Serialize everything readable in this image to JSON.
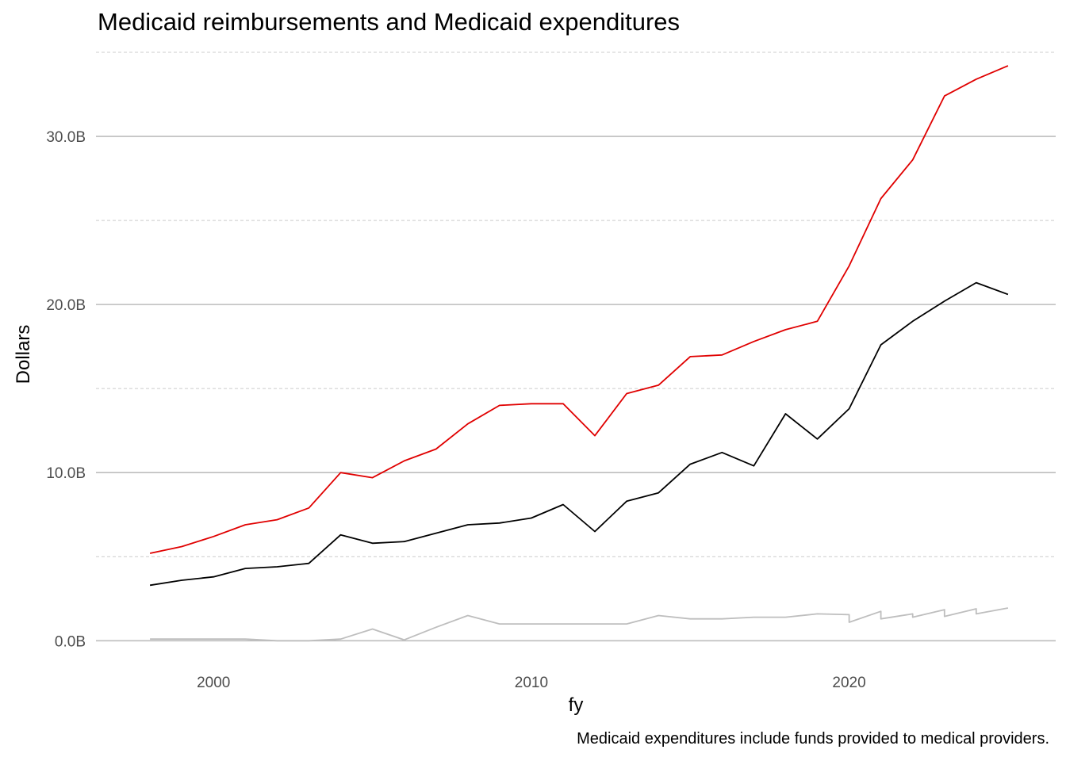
{
  "chart_data": {
    "type": "line",
    "title": "Medicaid reimbursements and Medicaid expenditures",
    "xlabel": "fy",
    "ylabel": "Dollars",
    "caption": "Medicaid expenditures include funds provided to medical providers.",
    "xlim": [
      1996.3,
      2026.5
    ],
    "ylim": [
      -1.4,
      35.0
    ],
    "x_ticks": [
      {
        "value": 2000,
        "label": "2000"
      },
      {
        "value": 2010,
        "label": "2010"
      },
      {
        "value": 2020,
        "label": "2020"
      }
    ],
    "y_ticks": [
      {
        "value": 0,
        "label": "0.0B"
      },
      {
        "value": 10,
        "label": "10.0B"
      },
      {
        "value": 20,
        "label": "20.0B"
      },
      {
        "value": 30,
        "label": "30.0B"
      }
    ],
    "y_minor_gridlines": [
      5,
      15,
      25,
      35
    ],
    "grid": true,
    "legend": "none",
    "series": [
      {
        "color": "#e00000",
        "points": [
          [
            1998,
            5.2
          ],
          [
            1999,
            5.6
          ],
          [
            2000,
            6.2
          ],
          [
            2001,
            6.9
          ],
          [
            2002,
            7.2
          ],
          [
            2003,
            7.9
          ],
          [
            2004,
            10.0
          ],
          [
            2005,
            9.7
          ],
          [
            2006,
            10.7
          ],
          [
            2007,
            11.4
          ],
          [
            2008,
            12.9
          ],
          [
            2009,
            14.0
          ],
          [
            2010,
            14.1
          ],
          [
            2011,
            14.1
          ],
          [
            2012,
            12.2
          ],
          [
            2013,
            14.7
          ],
          [
            2014,
            15.2
          ],
          [
            2015,
            16.9
          ],
          [
            2016,
            17.0
          ],
          [
            2017,
            17.8
          ],
          [
            2018,
            18.5
          ],
          [
            2019,
            19.0
          ],
          [
            2020,
            22.3
          ],
          [
            2021,
            26.3
          ],
          [
            2022,
            28.6
          ],
          [
            2023,
            32.4
          ],
          [
            2024,
            33.4
          ],
          [
            2025,
            34.2
          ]
        ]
      },
      {
        "color": "#000000",
        "points": [
          [
            1998,
            3.3
          ],
          [
            1999,
            3.6
          ],
          [
            2000,
            3.8
          ],
          [
            2001,
            4.3
          ],
          [
            2002,
            4.4
          ],
          [
            2003,
            4.6
          ],
          [
            2004,
            6.3
          ],
          [
            2005,
            5.8
          ],
          [
            2006,
            5.9
          ],
          [
            2007,
            6.4
          ],
          [
            2008,
            6.9
          ],
          [
            2009,
            7.0
          ],
          [
            2010,
            7.3
          ],
          [
            2011,
            8.1
          ],
          [
            2012,
            6.5
          ],
          [
            2013,
            8.3
          ],
          [
            2014,
            8.8
          ],
          [
            2015,
            10.5
          ],
          [
            2016,
            11.2
          ],
          [
            2017,
            10.4
          ],
          [
            2018,
            13.5
          ],
          [
            2019,
            12.0
          ],
          [
            2020,
            13.8
          ],
          [
            2021,
            17.6
          ],
          [
            2022,
            19.0
          ],
          [
            2023,
            20.2
          ],
          [
            2024,
            21.3
          ],
          [
            2025,
            20.6
          ]
        ]
      },
      {
        "color": "#bebebe",
        "points": [
          [
            1998,
            0.1
          ],
          [
            1999,
            0.1
          ],
          [
            2000,
            0.1
          ],
          [
            2001,
            0.1
          ],
          [
            2002,
            0.0
          ],
          [
            2003,
            0.0
          ],
          [
            2004,
            0.1
          ],
          [
            2005,
            0.7
          ],
          [
            2006,
            0.05
          ],
          [
            2007,
            0.8
          ],
          [
            2008,
            1.5
          ],
          [
            2009,
            1.0
          ],
          [
            2010,
            1.0
          ],
          [
            2011,
            1.0
          ],
          [
            2012,
            1.0
          ],
          [
            2013,
            1.0
          ],
          [
            2014,
            1.5
          ],
          [
            2015,
            1.3
          ],
          [
            2016,
            1.3
          ],
          [
            2017,
            1.4
          ],
          [
            2018,
            1.4
          ],
          [
            2019,
            1.6
          ],
          [
            2020,
            1.55
          ],
          [
            2020,
            1.1
          ],
          [
            2021,
            1.75
          ],
          [
            2021,
            1.3
          ],
          [
            2022,
            1.6
          ],
          [
            2022,
            1.4
          ],
          [
            2023,
            1.85
          ],
          [
            2023,
            1.45
          ],
          [
            2024,
            1.9
          ],
          [
            2024,
            1.6
          ],
          [
            2025,
            1.95
          ]
        ]
      }
    ]
  }
}
